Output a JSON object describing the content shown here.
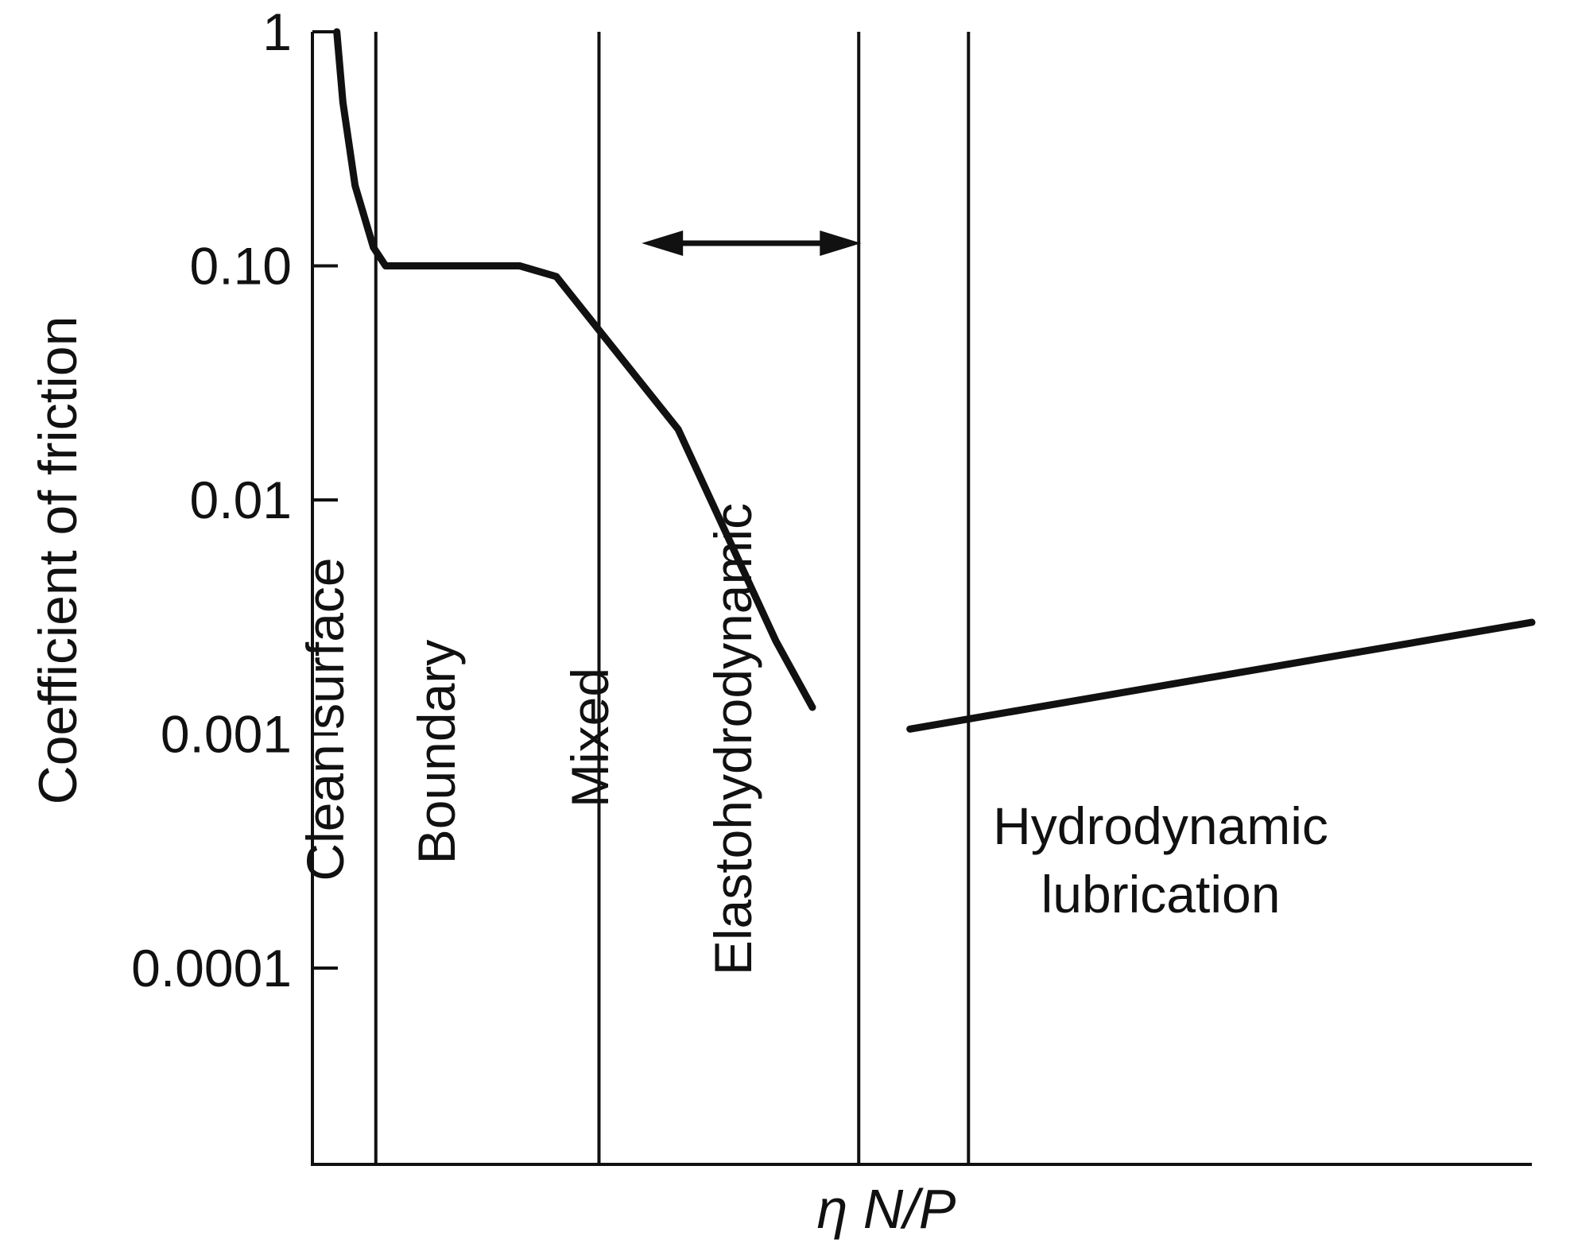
{
  "chart_data": {
    "type": "line",
    "title": "",
    "xlabel": "η N/P",
    "ylabel": "Coefficient of friction",
    "y_scale": "log",
    "y_ticks": [
      {
        "value": 1,
        "label": "1"
      },
      {
        "value": 0.1,
        "label": "0.10"
      },
      {
        "value": 0.01,
        "label": "0.01"
      },
      {
        "value": 0.001,
        "label": "0.001"
      },
      {
        "value": 0.0001,
        "label": "0.0001"
      }
    ],
    "regimes": [
      {
        "label": "Clean surface"
      },
      {
        "label": "Boundary"
      },
      {
        "label": "Mixed"
      },
      {
        "label": "Elastohydrodynamic"
      },
      {
        "label": "Hydrodynamic",
        "label2": "lubrication"
      }
    ],
    "series": [
      {
        "values": [
          {
            "x": 0.02,
            "y": 1.0
          },
          {
            "x": 0.025,
            "y": 0.5
          },
          {
            "x": 0.035,
            "y": 0.22
          },
          {
            "x": 0.05,
            "y": 0.12
          },
          {
            "x": 0.06,
            "y": 0.1
          },
          {
            "x": 0.17,
            "y": 0.1
          },
          {
            "x": 0.2,
            "y": 0.09
          },
          {
            "x": 0.3,
            "y": 0.02
          },
          {
            "x": 0.38,
            "y": 0.0025
          },
          {
            "x": 0.41,
            "y": 0.0013
          }
        ]
      },
      {
        "values": [
          {
            "x": 0.49,
            "y": 0.00105
          },
          {
            "x": 1.0,
            "y": 0.003
          }
        ]
      }
    ],
    "arrow": {
      "from_x": 0.27,
      "to_x": 0.45,
      "y": 0.125,
      "direction": "both"
    },
    "grid": false,
    "legend": "none"
  }
}
